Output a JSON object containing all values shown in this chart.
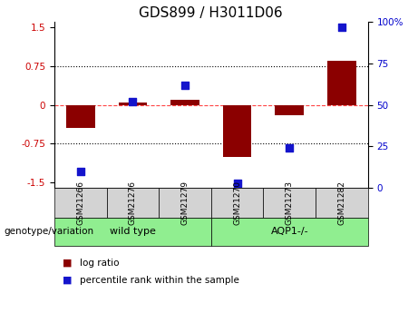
{
  "title": "GDS899 / H3011D06",
  "samples": [
    "GSM21266",
    "GSM21276",
    "GSM21279",
    "GSM21270",
    "GSM21273",
    "GSM21282"
  ],
  "log_ratio": [
    -0.45,
    0.05,
    0.1,
    -1.0,
    -0.2,
    0.85
  ],
  "percentile": [
    10,
    52,
    62,
    3,
    24,
    97
  ],
  "groups_def": [
    {
      "label": "wild type",
      "start": 0,
      "end": 2
    },
    {
      "label": "AQP1-/-",
      "start": 3,
      "end": 5
    }
  ],
  "bar_color": "#8B0000",
  "dot_color": "#1414CC",
  "zero_line_color": "#FF4444",
  "grid_color": "#000000",
  "ylim_left": [
    -1.6,
    1.6
  ],
  "ylim_right": [
    0,
    100
  ],
  "yticks_left": [
    -1.5,
    -0.75,
    0,
    0.75,
    1.5
  ],
  "yticks_right": [
    0,
    25,
    50,
    75,
    100
  ],
  "bar_width": 0.55,
  "dot_size": 40,
  "legend_entries": [
    "log ratio",
    "percentile rank within the sample"
  ],
  "group_label": "genotype/variation",
  "sample_box_color": "#D3D3D3",
  "group_box_color": "#90EE90",
  "title_fontsize": 11,
  "tick_fontsize": 7.5,
  "label_fontsize": 7.5
}
